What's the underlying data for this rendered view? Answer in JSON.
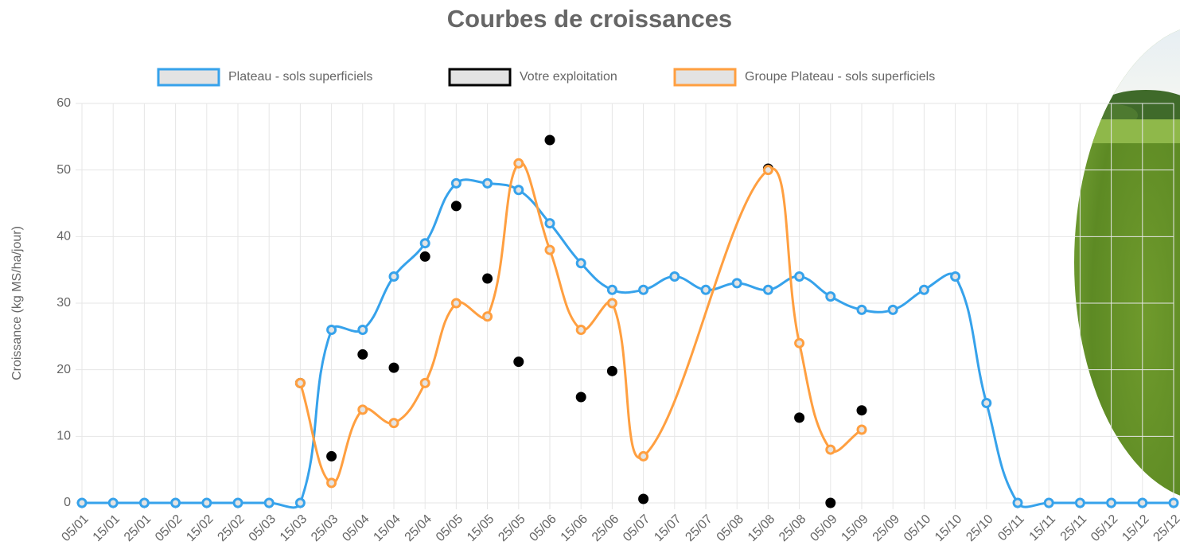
{
  "chart_data": {
    "type": "line",
    "title": "Courbes de croissances",
    "y_label": "Croissance (kg MS/ha/jour)",
    "categories": [
      "05/01",
      "15/01",
      "25/01",
      "05/02",
      "15/02",
      "25/02",
      "05/03",
      "15/03",
      "25/03",
      "05/04",
      "15/04",
      "25/04",
      "05/05",
      "15/05",
      "25/05",
      "05/06",
      "15/06",
      "25/06",
      "05/07",
      "15/07",
      "25/07",
      "05/08",
      "15/08",
      "25/08",
      "05/09",
      "15/09",
      "25/09",
      "05/10",
      "15/10",
      "25/10",
      "05/11",
      "15/11",
      "25/11",
      "05/12",
      "15/12",
      "25/12"
    ],
    "ylim": [
      0,
      60
    ],
    "yticks": [
      0,
      10,
      20,
      30,
      40,
      50,
      60
    ],
    "grid": true,
    "legend": "top",
    "span_gaps": true,
    "series": [
      {
        "name": "Plateau - sols superficiels",
        "color": "#36a2eb",
        "line": true,
        "values": [
          0,
          0,
          0,
          0,
          0,
          0,
          0,
          0,
          26,
          26,
          34,
          39,
          48,
          48,
          47,
          42,
          36,
          32,
          32,
          34,
          32,
          33,
          32,
          34,
          31,
          29,
          29,
          32,
          34,
          15,
          0,
          0,
          0,
          0,
          0,
          0
        ]
      },
      {
        "name": "Votre exploitation",
        "color": "#000000",
        "line": false,
        "values": [
          null,
          null,
          null,
          null,
          null,
          null,
          null,
          18,
          7,
          22.3,
          20.3,
          37,
          44.6,
          33.7,
          21.2,
          54.5,
          15.9,
          19.8,
          0.6,
          null,
          null,
          null,
          50.2,
          12.8,
          0,
          13.9,
          null,
          null,
          null,
          null,
          null,
          null,
          null,
          null,
          null,
          null
        ]
      },
      {
        "name": "Groupe Plateau - sols superficiels",
        "color": "#ff9f40",
        "line": true,
        "values": [
          null,
          null,
          null,
          null,
          null,
          null,
          null,
          18,
          3,
          14,
          12,
          18,
          30,
          28,
          51,
          38,
          26,
          30,
          7,
          null,
          null,
          null,
          50,
          24,
          8,
          11,
          null,
          null,
          null,
          null,
          null,
          null,
          null,
          null,
          null,
          null
        ]
      }
    ]
  }
}
